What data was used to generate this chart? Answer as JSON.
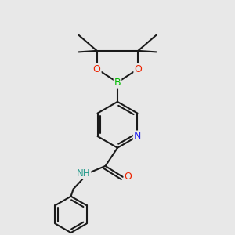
{
  "bg_color": "#e8e8e8",
  "bond_color": "#1a1a1a",
  "bond_width": 1.5,
  "dbo": 0.012,
  "atom_colors": {
    "B": "#00bb00",
    "O": "#ee2200",
    "N": "#2222ee",
    "NH": "#2a9d8f",
    "C": "#1a1a1a"
  },
  "font_size": 8.5,
  "font_size_atom": 9.0
}
